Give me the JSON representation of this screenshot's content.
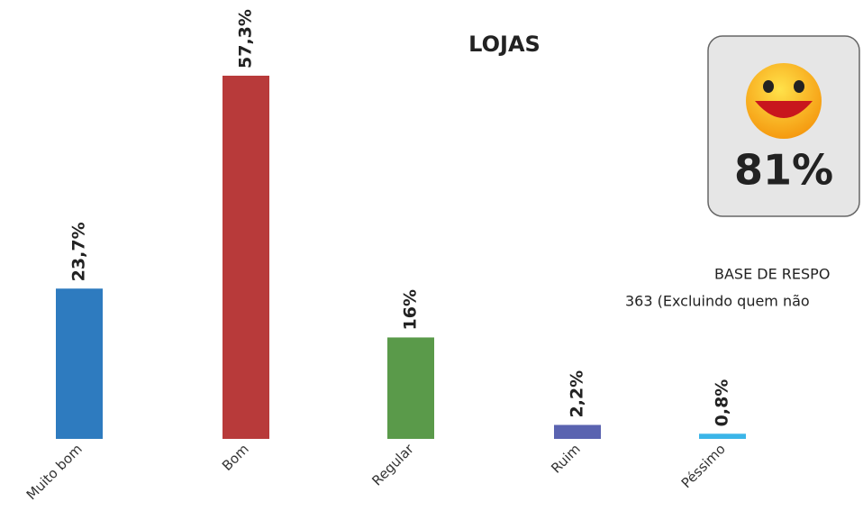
{
  "chart_data": {
    "type": "bar",
    "title": "LOJAS",
    "categories": [
      "Muito bom",
      "Bom",
      "Regular",
      "Ruim",
      "Péssimo"
    ],
    "values": [
      23.7,
      57.3,
      16,
      2.2,
      0.8
    ],
    "value_labels": [
      "23,7%",
      "57,3%",
      "16%",
      "2,2%",
      "0,8%"
    ],
    "colors": [
      "#2e7bbf",
      "#b83a3a",
      "#5a9a4a",
      "#5a63b0",
      "#3bb5e8"
    ],
    "badge": "81%",
    "base_title": "BASE DE RESPO",
    "base_note": "363 (Excluindo quem não"
  }
}
